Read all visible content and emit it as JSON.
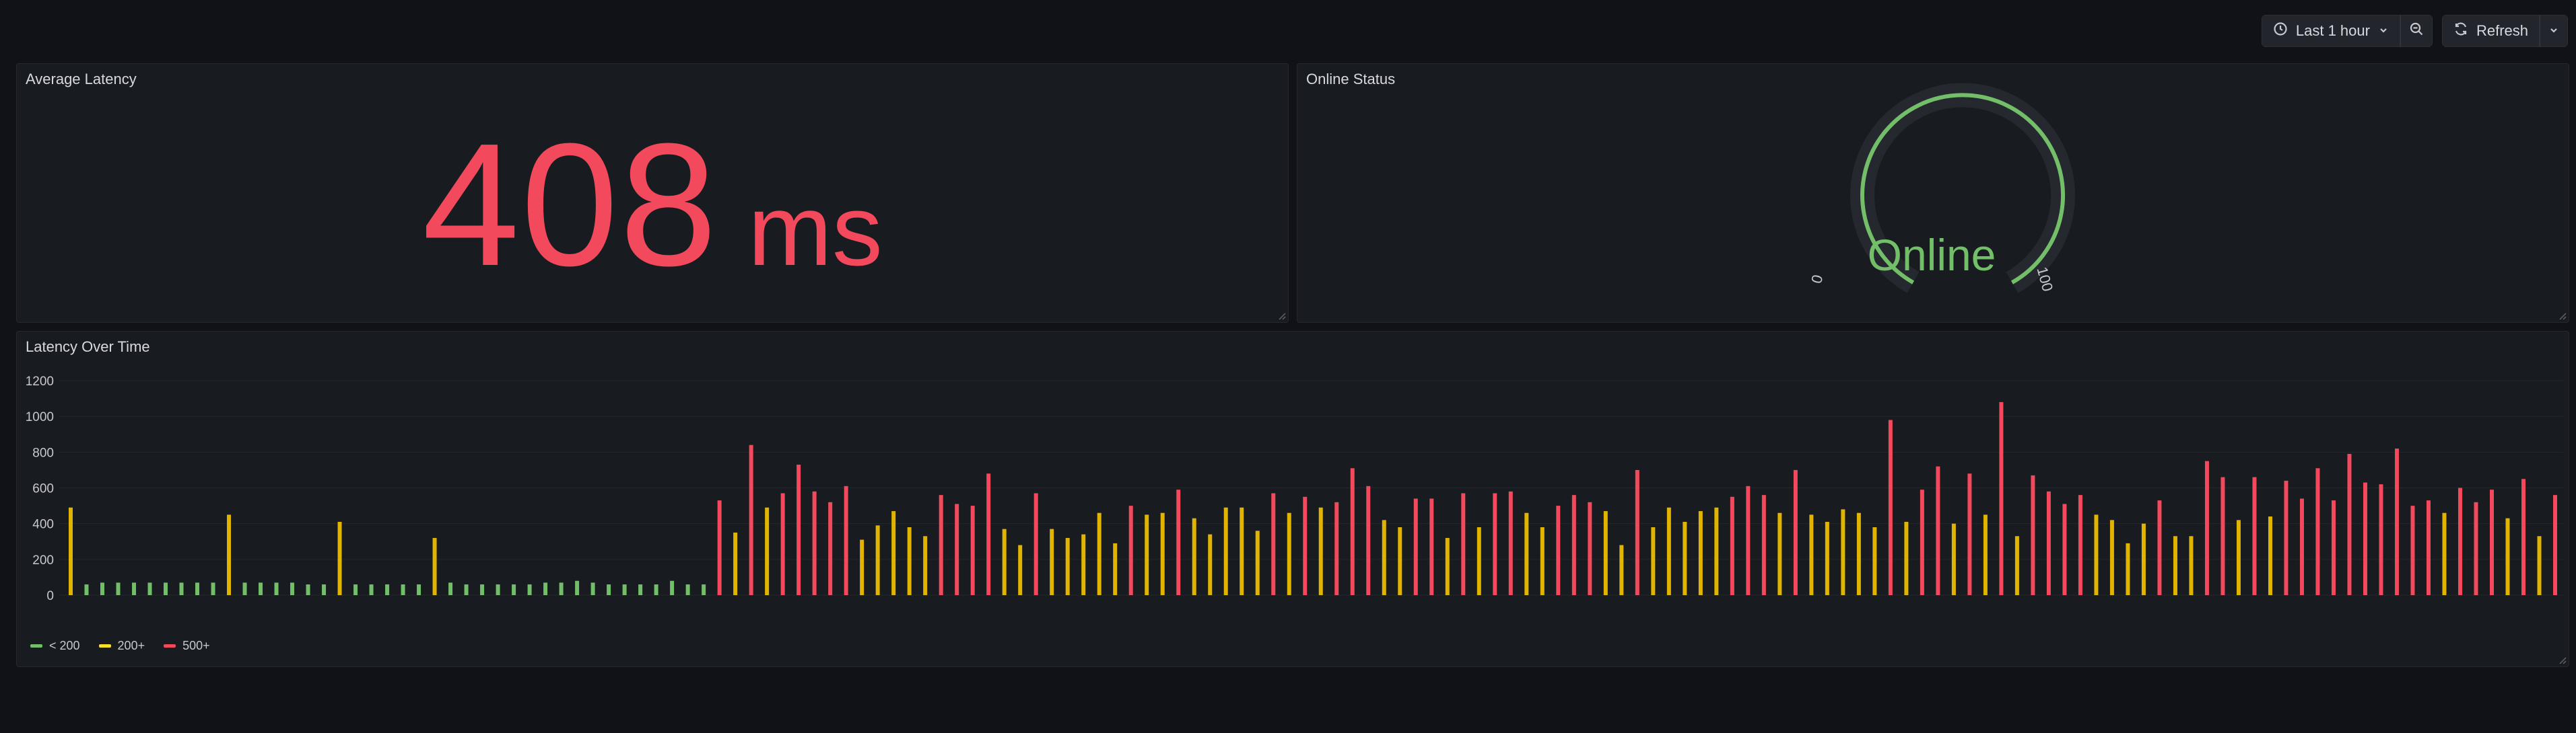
{
  "toolbar": {
    "time_range": "Last 1 hour",
    "refresh_label": "Refresh",
    "icons": [
      "clock-icon",
      "chevron-down-icon",
      "zoom-out-icon",
      "refresh-icon",
      "chevron-down-icon"
    ]
  },
  "panels": {
    "latency": {
      "title": "Average Latency",
      "value": "408",
      "unit": "ms",
      "color": "#f2495c"
    },
    "status": {
      "title": "Online Status",
      "value": "Online",
      "min": "0",
      "max": "100",
      "level": 1.0,
      "color": "#73bf69"
    },
    "timeseries": {
      "title": "Latency Over Time",
      "legend": [
        {
          "label": "< 200",
          "color": "#73bf69"
        },
        {
          "label": "200+",
          "color": "#fade2a"
        },
        {
          "label": "500+",
          "color": "#f2495c"
        }
      ]
    }
  },
  "colors": {
    "green": "#73bf69",
    "yellow": "#e0b400",
    "red": "#f2495c"
  },
  "chart_data": {
    "type": "bar",
    "title": "Latency Over Time",
    "ylim": [
      0,
      1200
    ],
    "yticks": [
      "0",
      "200",
      "400",
      "600",
      "800",
      "1000",
      "1200"
    ],
    "grid": true,
    "legend": "bottom-left",
    "thresholds": [
      200,
      500
    ],
    "values": [
      490,
      60,
      70,
      70,
      70,
      70,
      70,
      70,
      70,
      70,
      450,
      70,
      70,
      70,
      70,
      60,
      60,
      410,
      60,
      60,
      60,
      60,
      60,
      320,
      70,
      60,
      60,
      60,
      60,
      60,
      70,
      70,
      80,
      70,
      60,
      60,
      60,
      60,
      80,
      60,
      60,
      530,
      350,
      840,
      490,
      570,
      730,
      580,
      520,
      610,
      310,
      390,
      470,
      380,
      330,
      560,
      510,
      500,
      680,
      370,
      280,
      570,
      370,
      320,
      340,
      460,
      290,
      500,
      450,
      460,
      590,
      430,
      340,
      490,
      490,
      360,
      570,
      460,
      550,
      490,
      520,
      710,
      610,
      420,
      380,
      540,
      540,
      320,
      570,
      380,
      570,
      580,
      460,
      380,
      500,
      560,
      520,
      470,
      280,
      700,
      380,
      490,
      410,
      470,
      490,
      550,
      610,
      560,
      460,
      700,
      450,
      410,
      480,
      460,
      380,
      980,
      410,
      590,
      720,
      400,
      680,
      450,
      1080,
      330,
      670,
      580,
      510,
      560,
      450,
      420,
      290,
      400,
      530,
      330,
      330,
      750,
      660,
      420,
      660,
      440,
      640,
      540,
      710,
      530,
      790,
      630,
      620,
      820,
      500,
      530,
      460,
      600,
      520,
      590,
      430,
      650,
      330,
      560
    ]
  }
}
